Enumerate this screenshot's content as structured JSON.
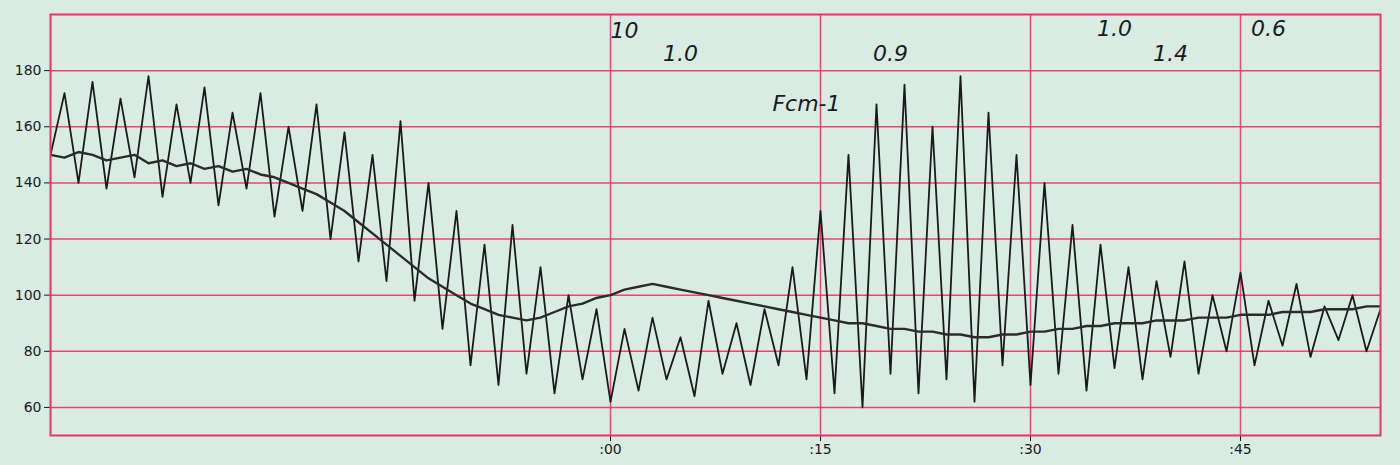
{
  "chart_data": {
    "type": "line",
    "x": [
      -40,
      -39,
      -38,
      -37,
      -36,
      -35,
      -34,
      -33,
      -32,
      -31,
      -30,
      -29,
      -28,
      -27,
      -26,
      -25,
      -24,
      -23,
      -22,
      -21,
      -20,
      -19,
      -18,
      -17,
      -16,
      -15,
      -14,
      -13,
      -12,
      -11,
      -10,
      -9,
      -8,
      -7,
      -6,
      -5,
      -4,
      -3,
      -2,
      -1,
      0,
      1,
      2,
      3,
      4,
      5,
      6,
      7,
      8,
      9,
      10,
      11,
      12,
      13,
      14,
      15,
      16,
      17,
      18,
      19,
      20,
      21,
      22,
      23,
      24,
      25,
      26,
      27,
      28,
      29,
      30,
      31,
      32,
      33,
      34,
      35,
      36,
      37,
      38,
      39,
      40,
      41,
      42,
      43,
      44,
      45,
      46,
      47,
      48,
      49,
      50,
      51,
      52,
      53,
      54,
      55
    ],
    "series": [
      {
        "color": "#1a1a1a",
        "line_style": "solid",
        "values": [
          150,
          172,
          140,
          176,
          138,
          170,
          142,
          178,
          135,
          168,
          140,
          174,
          132,
          165,
          138,
          172,
          128,
          160,
          130,
          168,
          120,
          158,
          112,
          150,
          105,
          162,
          98,
          140,
          88,
          130,
          75,
          118,
          68,
          125,
          72,
          110,
          65,
          100,
          70,
          95,
          62,
          88,
          66,
          92,
          70,
          85,
          64,
          98,
          72,
          90,
          68,
          95,
          75,
          110,
          70,
          130,
          65,
          150,
          60,
          168,
          72,
          175,
          65,
          160,
          70,
          178,
          62,
          165,
          75,
          150,
          68,
          140,
          72,
          125,
          66,
          118,
          74,
          110,
          70,
          105,
          78,
          112,
          72,
          100,
          80,
          108,
          75,
          98,
          82,
          104,
          78,
          96,
          84,
          100,
          80,
          95
        ]
      },
      {
        "color": "#2b2b2b",
        "line_style": "solid",
        "values": [
          150,
          149,
          151,
          150,
          148,
          149,
          150,
          147,
          148,
          146,
          147,
          145,
          146,
          144,
          145,
          143,
          142,
          140,
          138,
          136,
          133,
          130,
          126,
          122,
          118,
          114,
          110,
          106,
          103,
          100,
          97,
          95,
          93,
          92,
          91,
          92,
          94,
          96,
          97,
          99,
          100,
          102,
          103,
          104,
          103,
          102,
          101,
          100,
          99,
          98,
          97,
          96,
          95,
          94,
          93,
          92,
          91,
          90,
          90,
          89,
          88,
          88,
          87,
          87,
          86,
          86,
          85,
          85,
          86,
          86,
          87,
          87,
          88,
          88,
          89,
          89,
          90,
          90,
          90,
          91,
          91,
          91,
          92,
          92,
          92,
          93,
          93,
          93,
          94,
          94,
          94,
          95,
          95,
          95,
          96,
          96
        ]
      }
    ],
    "xlim": [
      -40,
      55
    ],
    "xticks": [
      {
        "value": 0,
        "label": ":00"
      },
      {
        "value": 15,
        "label": ":15"
      },
      {
        "value": 30,
        "label": ":30"
      },
      {
        "value": 45,
        "label": ":45"
      }
    ],
    "ylim": [
      50,
      200
    ],
    "yticks": [
      60,
      80,
      100,
      120,
      140,
      160,
      180
    ],
    "grid": true,
    "annotations": [
      {
        "text": "10",
        "x": 1,
        "y": 194
      },
      {
        "text": "1.0",
        "x": 5,
        "y": 186
      },
      {
        "text": "0.9",
        "x": 20,
        "y": 186
      },
      {
        "text": "1.4",
        "x": 40,
        "y": 186
      },
      {
        "text": "1.0",
        "x": 36,
        "y": 195
      },
      {
        "text": "0.6",
        "x": 47,
        "y": 195
      },
      {
        "text": "Fcm-1",
        "x": 14,
        "y": 168
      }
    ]
  }
}
